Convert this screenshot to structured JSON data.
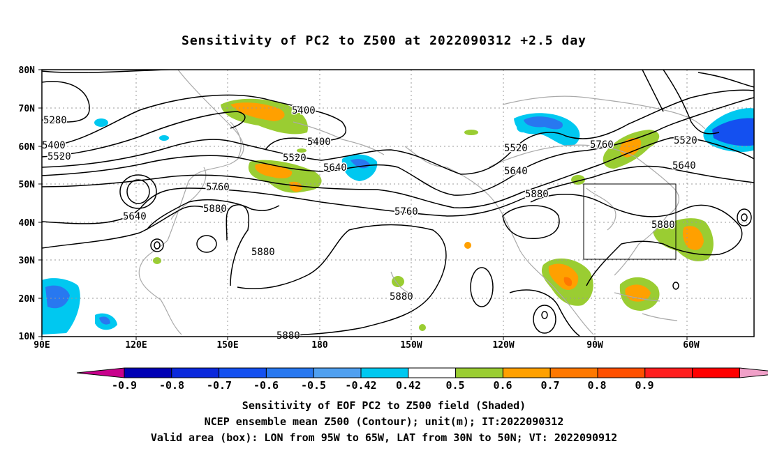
{
  "title": "Sensitivity of PC2 to Z500 at 2022090312 +2.5 day",
  "axes": {
    "lat_labels": [
      "80N",
      "70N",
      "60N",
      "50N",
      "40N",
      "30N",
      "20N",
      "10N"
    ],
    "lon_labels": [
      "90E",
      "120E",
      "150E",
      "180",
      "150W",
      "120W",
      "90W",
      "60W"
    ]
  },
  "colorbar": {
    "labels": [
      "-0.9",
      "-0.8",
      "-0.7",
      "-0.6",
      "-0.5",
      "-0.42",
      "0.42",
      "0.5",
      "0.6",
      "0.7",
      "0.8",
      "0.9"
    ],
    "colors": [
      "#c8008c",
      "#0000b4",
      "#0a28dc",
      "#1450f0",
      "#2878f0",
      "#50a0f0",
      "#00c8f0",
      "#ffffff",
      "#9acd32",
      "#ffa000",
      "#ff7800",
      "#ff5000",
      "#ff1e1e",
      "#ff0000",
      "#f0a0c8"
    ]
  },
  "contour_labels": [
    "5280",
    "5400",
    "5520",
    "5400",
    "5400",
    "5520",
    "5640",
    "5760",
    "5640",
    "5880",
    "5880",
    "5880",
    "5760",
    "5880",
    "5640",
    "5880",
    "5760",
    "5520",
    "5640",
    "5520",
    "5880"
  ],
  "valid_box": {
    "lon_from": "95W",
    "lon_to": "65W",
    "lat_from": "30N",
    "lat_to": "50N"
  },
  "captions": {
    "line1": "Sensitivity of EOF PC2 to Z500 field (Shaded)",
    "line2": "NCEP ensemble mean Z500 (Contour); unit(m); IT:2022090312",
    "line3": "Valid area (box): LON from 95W to 65W, LAT from 30N to 50N; VT: 2022090912"
  }
}
